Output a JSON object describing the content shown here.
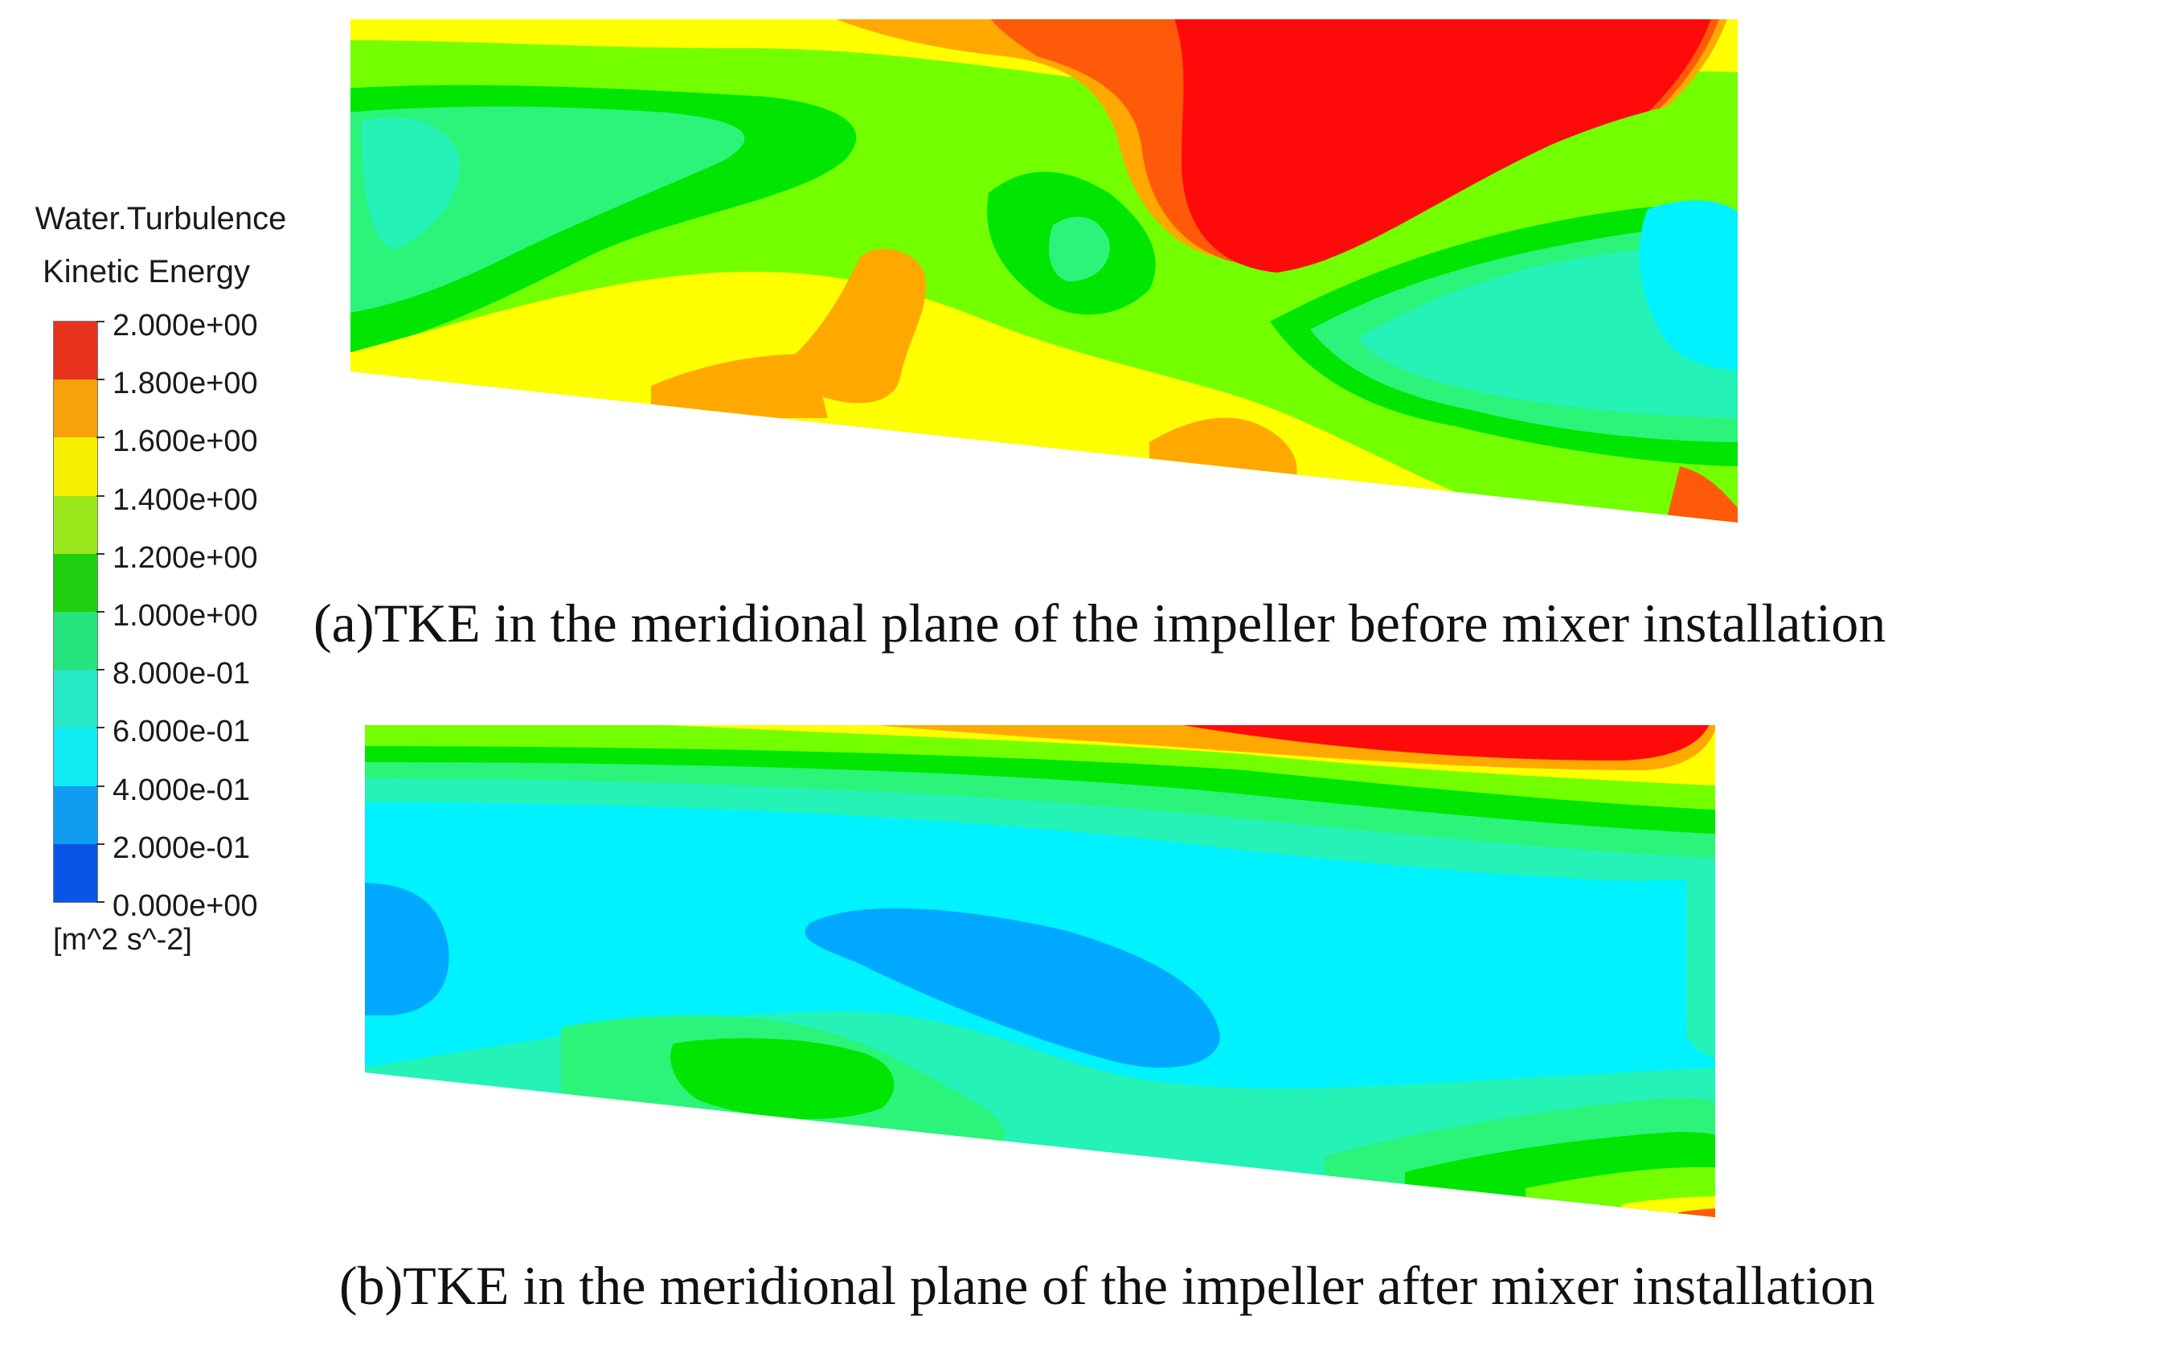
{
  "legend": {
    "title_line1": "Water.Turbulence",
    "title_line2": "Kinetic Energy",
    "labels": [
      "2.000e+00",
      "1.800e+00",
      "1.600e+00",
      "1.400e+00",
      "1.200e+00",
      "1.000e+00",
      "8.000e-01",
      "6.000e-01",
      "4.000e-01",
      "2.000e-01",
      "0.000e+00"
    ],
    "unit": "[m^2 s^-2]",
    "colors": [
      "#e8331c",
      "#f7a20a",
      "#f5ef00",
      "#9be81c",
      "#1fcf10",
      "#25e37d",
      "#26e8c4",
      "#12eaf3",
      "#109df0",
      "#0a54e8"
    ]
  },
  "panels": [
    {
      "caption": "(a)TKE in the meridional plane of the impeller before mixer installation",
      "field": "before mixer installation"
    },
    {
      "caption": "(b)TKE in the meridional plane of the impeller after mixer installation",
      "field": "after mixer installation"
    }
  ],
  "colormap": {
    "red": "#ff0a0a",
    "orange_red": "#ff5a0a",
    "orange": "#ffa800",
    "yellow": "#ffff00",
    "yellow_green": "#b8ff00",
    "light_green": "#73ff00",
    "green": "#00e600",
    "mint": "#2cf37a",
    "teal": "#24f2b7",
    "cyan": "#00f2ff",
    "sky": "#00a9ff"
  }
}
